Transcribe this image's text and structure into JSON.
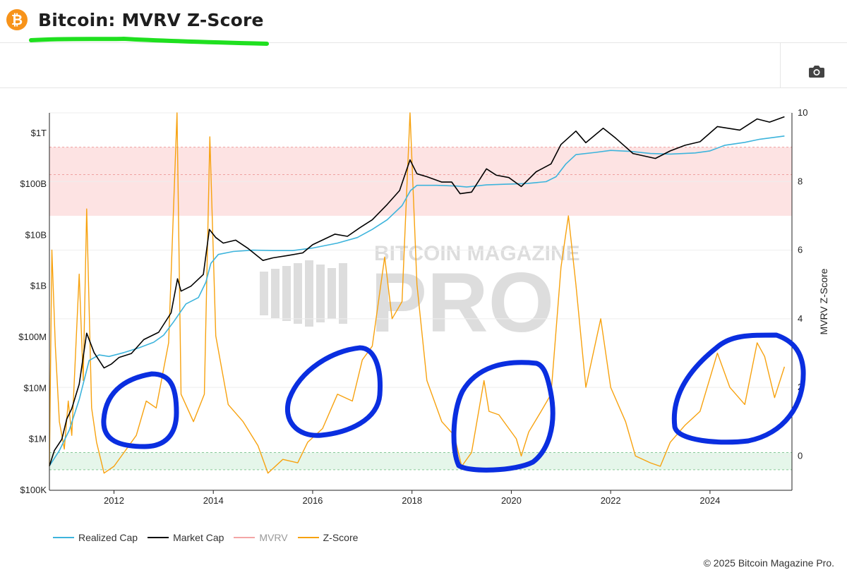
{
  "header": {
    "logo_glyph": "₿",
    "title": "Bitcoin: MVRV Z-Score"
  },
  "toolbar": {
    "camera_icon": "camera-icon"
  },
  "colors": {
    "realized": "#3db4dc",
    "market": "#000000",
    "mvrv": "#f4a6a6",
    "zscore": "#f7a20f",
    "red_band": "#fde3e3",
    "green_band": "#e5f6ea",
    "annotation_blue": "#0a2ee0",
    "annotation_green": "#1fe01f",
    "bitcoin_orange": "#f7931a"
  },
  "watermark": {
    "line1": "BITCOIN MAGAZINE",
    "line2": "PRO"
  },
  "legend": [
    {
      "key": "realized",
      "label": "Realized Cap",
      "color": "#3db4dc",
      "muted": false
    },
    {
      "key": "market",
      "label": "Market Cap",
      "color": "#000000",
      "muted": false
    },
    {
      "key": "mvrv",
      "label": "MVRV",
      "color": "#f4a6a6",
      "muted": true
    },
    {
      "key": "zscore",
      "label": "Z-Score",
      "color": "#f7a20f",
      "muted": false
    }
  ],
  "copyright": "© 2025 Bitcoin Magazine Pro.",
  "chart_data": {
    "type": "line",
    "x_ticks": [
      2012,
      2014,
      2016,
      2018,
      2020,
      2022,
      2024
    ],
    "x_range": [
      2010.7,
      2025.65
    ],
    "left_axis": {
      "scale": "log",
      "range": [
        100000,
        2500000000000
      ],
      "ticks": [
        {
          "value": 100000,
          "label": "$100K"
        },
        {
          "value": 1000000,
          "label": "$1M"
        },
        {
          "value": 10000000,
          "label": "$10M"
        },
        {
          "value": 100000000,
          "label": "$100M"
        },
        {
          "value": 1000000000,
          "label": "$1B"
        },
        {
          "value": 10000000000,
          "label": "$10B"
        },
        {
          "value": 100000000000,
          "label": "$100B"
        },
        {
          "value": 1000000000000,
          "label": "$1T"
        }
      ]
    },
    "right_axis": {
      "label": "MVRV Z-Score",
      "range": [
        -1,
        10
      ],
      "ticks": [
        0,
        2,
        4,
        6,
        8,
        10
      ],
      "red_band": [
        7,
        9
      ],
      "red_band_midline": 8.2,
      "green_band": [
        -0.4,
        0.1
      ],
      "green_band_midline": -0.1
    },
    "series": [
      {
        "name": "Realized Cap",
        "axis": "left",
        "color": "#3db4dc",
        "points": [
          [
            2010.7,
            300000
          ],
          [
            2010.9,
            600000
          ],
          [
            2011.1,
            1500000
          ],
          [
            2011.3,
            6000000
          ],
          [
            2011.5,
            35000000
          ],
          [
            2011.7,
            45000000
          ],
          [
            2011.9,
            42000000
          ],
          [
            2012.2,
            50000000
          ],
          [
            2012.5,
            62000000
          ],
          [
            2012.8,
            80000000
          ],
          [
            2013.0,
            110000000
          ],
          [
            2013.2,
            200000000
          ],
          [
            2013.45,
            450000000
          ],
          [
            2013.7,
            600000000
          ],
          [
            2013.85,
            1200000000
          ],
          [
            2013.95,
            2800000000
          ],
          [
            2014.1,
            4200000000
          ],
          [
            2014.4,
            4800000000
          ],
          [
            2014.8,
            5100000000
          ],
          [
            2015.2,
            5000000000
          ],
          [
            2015.6,
            5000000000
          ],
          [
            2016.0,
            5600000000
          ],
          [
            2016.5,
            7000000000
          ],
          [
            2016.9,
            9000000000
          ],
          [
            2017.2,
            13000000000
          ],
          [
            2017.5,
            20000000000
          ],
          [
            2017.8,
            38000000000
          ],
          [
            2017.97,
            75000000000
          ],
          [
            2018.1,
            95000000000
          ],
          [
            2018.5,
            95000000000
          ],
          [
            2018.9,
            92000000000
          ],
          [
            2019.1,
            88000000000
          ],
          [
            2019.5,
            97000000000
          ],
          [
            2019.9,
            100000000000
          ],
          [
            2020.3,
            103000000000
          ],
          [
            2020.7,
            112000000000
          ],
          [
            2020.9,
            140000000000
          ],
          [
            2021.1,
            250000000000
          ],
          [
            2021.3,
            380000000000
          ],
          [
            2021.7,
            420000000000
          ],
          [
            2022.0,
            460000000000
          ],
          [
            2022.4,
            440000000000
          ],
          [
            2022.8,
            400000000000
          ],
          [
            2023.2,
            390000000000
          ],
          [
            2023.7,
            410000000000
          ],
          [
            2024.0,
            450000000000
          ],
          [
            2024.3,
            580000000000
          ],
          [
            2024.7,
            660000000000
          ],
          [
            2025.0,
            760000000000
          ],
          [
            2025.5,
            880000000000
          ]
        ]
      },
      {
        "name": "Market Cap",
        "axis": "left",
        "color": "#000000",
        "points": [
          [
            2010.7,
            300000
          ],
          [
            2010.8,
            600000
          ],
          [
            2010.95,
            1000000
          ],
          [
            2011.05,
            2500000
          ],
          [
            2011.15,
            4000000
          ],
          [
            2011.3,
            12000000
          ],
          [
            2011.45,
            120000000
          ],
          [
            2011.6,
            50000000
          ],
          [
            2011.8,
            25000000
          ],
          [
            2011.95,
            30000000
          ],
          [
            2012.1,
            40000000
          ],
          [
            2012.35,
            48000000
          ],
          [
            2012.6,
            90000000
          ],
          [
            2012.9,
            125000000
          ],
          [
            2013.15,
            300000000
          ],
          [
            2013.28,
            1400000000
          ],
          [
            2013.35,
            800000000
          ],
          [
            2013.55,
            1000000000
          ],
          [
            2013.8,
            1700000000
          ],
          [
            2013.92,
            13000000000
          ],
          [
            2014.05,
            9000000000
          ],
          [
            2014.2,
            7000000000
          ],
          [
            2014.45,
            8000000000
          ],
          [
            2014.7,
            5500000000
          ],
          [
            2015.0,
            3200000000
          ],
          [
            2015.2,
            3600000000
          ],
          [
            2015.5,
            4000000000
          ],
          [
            2015.8,
            4500000000
          ],
          [
            2016.0,
            6500000000
          ],
          [
            2016.45,
            10500000000
          ],
          [
            2016.7,
            9500000000
          ],
          [
            2016.95,
            14000000000
          ],
          [
            2017.2,
            20000000000
          ],
          [
            2017.5,
            40000000000
          ],
          [
            2017.75,
            75000000000
          ],
          [
            2017.96,
            300000000000
          ],
          [
            2018.1,
            160000000000
          ],
          [
            2018.3,
            140000000000
          ],
          [
            2018.6,
            110000000000
          ],
          [
            2018.8,
            110000000000
          ],
          [
            2018.97,
            65000000000
          ],
          [
            2019.2,
            70000000000
          ],
          [
            2019.5,
            200000000000
          ],
          [
            2019.7,
            150000000000
          ],
          [
            2019.95,
            135000000000
          ],
          [
            2020.2,
            90000000000
          ],
          [
            2020.5,
            175000000000
          ],
          [
            2020.8,
            250000000000
          ],
          [
            2021.0,
            600000000000
          ],
          [
            2021.3,
            1100000000000
          ],
          [
            2021.5,
            650000000000
          ],
          [
            2021.85,
            1250000000000
          ],
          [
            2022.1,
            800000000000
          ],
          [
            2022.45,
            400000000000
          ],
          [
            2022.9,
            320000000000
          ],
          [
            2023.2,
            450000000000
          ],
          [
            2023.5,
            580000000000
          ],
          [
            2023.8,
            680000000000
          ],
          [
            2024.15,
            1350000000000
          ],
          [
            2024.6,
            1150000000000
          ],
          [
            2024.95,
            1900000000000
          ],
          [
            2025.2,
            1650000000000
          ],
          [
            2025.5,
            2100000000000
          ]
        ]
      },
      {
        "name": "Z-Score",
        "axis": "right",
        "color": "#f7a20f",
        "points": [
          [
            2010.7,
            -0.3
          ],
          [
            2010.75,
            6.0
          ],
          [
            2010.82,
            3.2
          ],
          [
            2010.9,
            1.0
          ],
          [
            2011.0,
            0.2
          ],
          [
            2011.08,
            1.6
          ],
          [
            2011.15,
            0.6
          ],
          [
            2011.3,
            5.3
          ],
          [
            2011.38,
            2.2
          ],
          [
            2011.45,
            7.2
          ],
          [
            2011.55,
            1.4
          ],
          [
            2011.65,
            0.4
          ],
          [
            2011.8,
            -0.5
          ],
          [
            2012.0,
            -0.3
          ],
          [
            2012.2,
            0.1
          ],
          [
            2012.45,
            0.6
          ],
          [
            2012.65,
            1.6
          ],
          [
            2012.85,
            1.4
          ],
          [
            2013.1,
            3.3
          ],
          [
            2013.27,
            10.0
          ],
          [
            2013.35,
            1.8
          ],
          [
            2013.6,
            1.0
          ],
          [
            2013.82,
            1.8
          ],
          [
            2013.93,
            9.3
          ],
          [
            2014.05,
            3.5
          ],
          [
            2014.3,
            1.5
          ],
          [
            2014.6,
            1.0
          ],
          [
            2014.9,
            0.3
          ],
          [
            2015.1,
            -0.5
          ],
          [
            2015.4,
            -0.1
          ],
          [
            2015.7,
            -0.2
          ],
          [
            2015.9,
            0.4
          ],
          [
            2016.2,
            0.8
          ],
          [
            2016.5,
            1.8
          ],
          [
            2016.8,
            1.6
          ],
          [
            2017.0,
            2.8
          ],
          [
            2017.2,
            3.2
          ],
          [
            2017.45,
            5.8
          ],
          [
            2017.6,
            4.0
          ],
          [
            2017.8,
            4.5
          ],
          [
            2017.96,
            10.0
          ],
          [
            2018.1,
            5.0
          ],
          [
            2018.3,
            2.2
          ],
          [
            2018.6,
            1.0
          ],
          [
            2018.85,
            0.6
          ],
          [
            2019.0,
            -0.3
          ],
          [
            2019.2,
            0.1
          ],
          [
            2019.45,
            2.2
          ],
          [
            2019.55,
            1.3
          ],
          [
            2019.75,
            1.2
          ],
          [
            2020.1,
            0.5
          ],
          [
            2020.2,
            0.0
          ],
          [
            2020.35,
            0.7
          ],
          [
            2020.6,
            1.3
          ],
          [
            2020.8,
            1.8
          ],
          [
            2021.0,
            5.5
          ],
          [
            2021.15,
            7.0
          ],
          [
            2021.3,
            5.0
          ],
          [
            2021.5,
            2.0
          ],
          [
            2021.8,
            4.0
          ],
          [
            2022.0,
            2.0
          ],
          [
            2022.3,
            1.0
          ],
          [
            2022.5,
            0.0
          ],
          [
            2022.8,
            -0.2
          ],
          [
            2023.0,
            -0.3
          ],
          [
            2023.2,
            0.4
          ],
          [
            2023.5,
            0.9
          ],
          [
            2023.8,
            1.3
          ],
          [
            2024.15,
            3.0
          ],
          [
            2024.4,
            2.0
          ],
          [
            2024.7,
            1.5
          ],
          [
            2024.95,
            3.3
          ],
          [
            2025.1,
            2.9
          ],
          [
            2025.3,
            1.7
          ],
          [
            2025.5,
            2.6
          ]
        ]
      }
    ]
  }
}
